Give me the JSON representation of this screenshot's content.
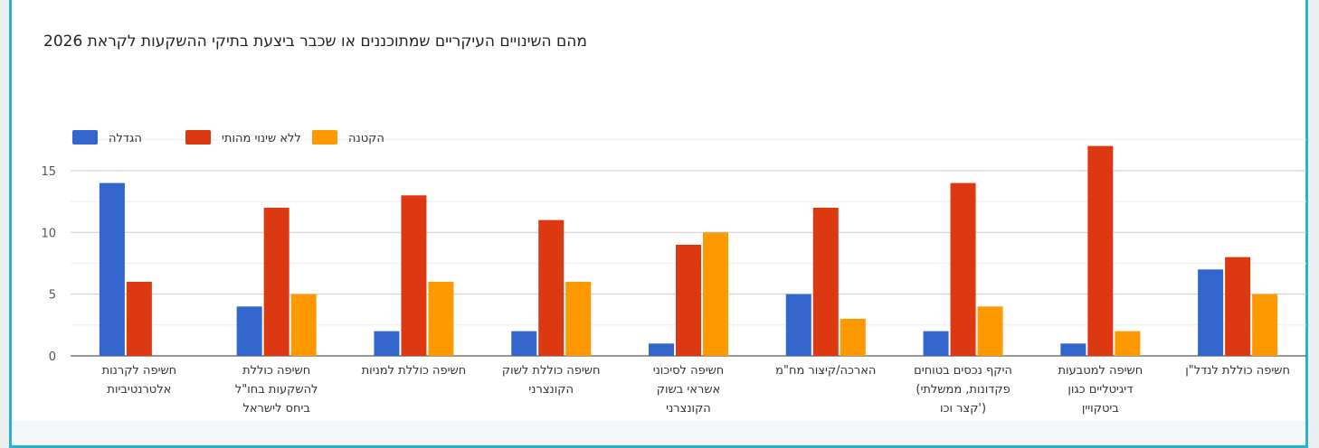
{
  "title": "מהם השינויים העיקריים שמתוכננים או שכבר ביצעת בתיקי ההשקעות לקראת 2026",
  "chart_data": {
    "type": "bar",
    "title": "מהם השינויים העיקריים שמתוכננים או שכבר ביצעת בתיקי ההשקעות לקראת 2026",
    "legend_position": "top-left",
    "ylim": [
      0,
      18
    ],
    "yticks": [
      "0",
      "5",
      "10",
      "15"
    ],
    "grid": true,
    "categories": [
      [
        "חשיפה לקרנות",
        "אלטרנטיביות"
      ],
      [
        "חשיפה כוללת",
        "להשקעות בחו\"ל",
        "ביחס לישראל"
      ],
      [
        "חשיפה כוללת למניות"
      ],
      [
        "חשיפה כוללת לשוק",
        "הקונצרני"
      ],
      [
        "חשיפה לסיכוני",
        "אשראי בשוק",
        "הקונצרני"
      ],
      [
        "הארכה/קיצור מח\"מ"
      ],
      [
        "היקף נכסים בטוחים",
        "פקדונות, ממשלתי)",
        "('קצר וכו"
      ],
      [
        "חשיפה למטבעות",
        "דיגיטליים כגון",
        "ביטקויין"
      ],
      [
        "חשיפה כוללת לנדל\"ן"
      ]
    ],
    "series": [
      {
        "name": "הגדלה",
        "color": "#3366cc",
        "values": [
          14,
          4,
          2,
          2,
          1,
          5,
          2,
          1,
          7
        ]
      },
      {
        "name": "ללא שינוי מהותי",
        "color": "#dc3912",
        "values": [
          6,
          12,
          13,
          11,
          9,
          12,
          14,
          17,
          8
        ]
      },
      {
        "name": "הקטנה",
        "color": "#ff9900",
        "values": [
          0,
          5,
          6,
          6,
          10,
          3,
          4,
          2,
          5
        ]
      }
    ]
  }
}
